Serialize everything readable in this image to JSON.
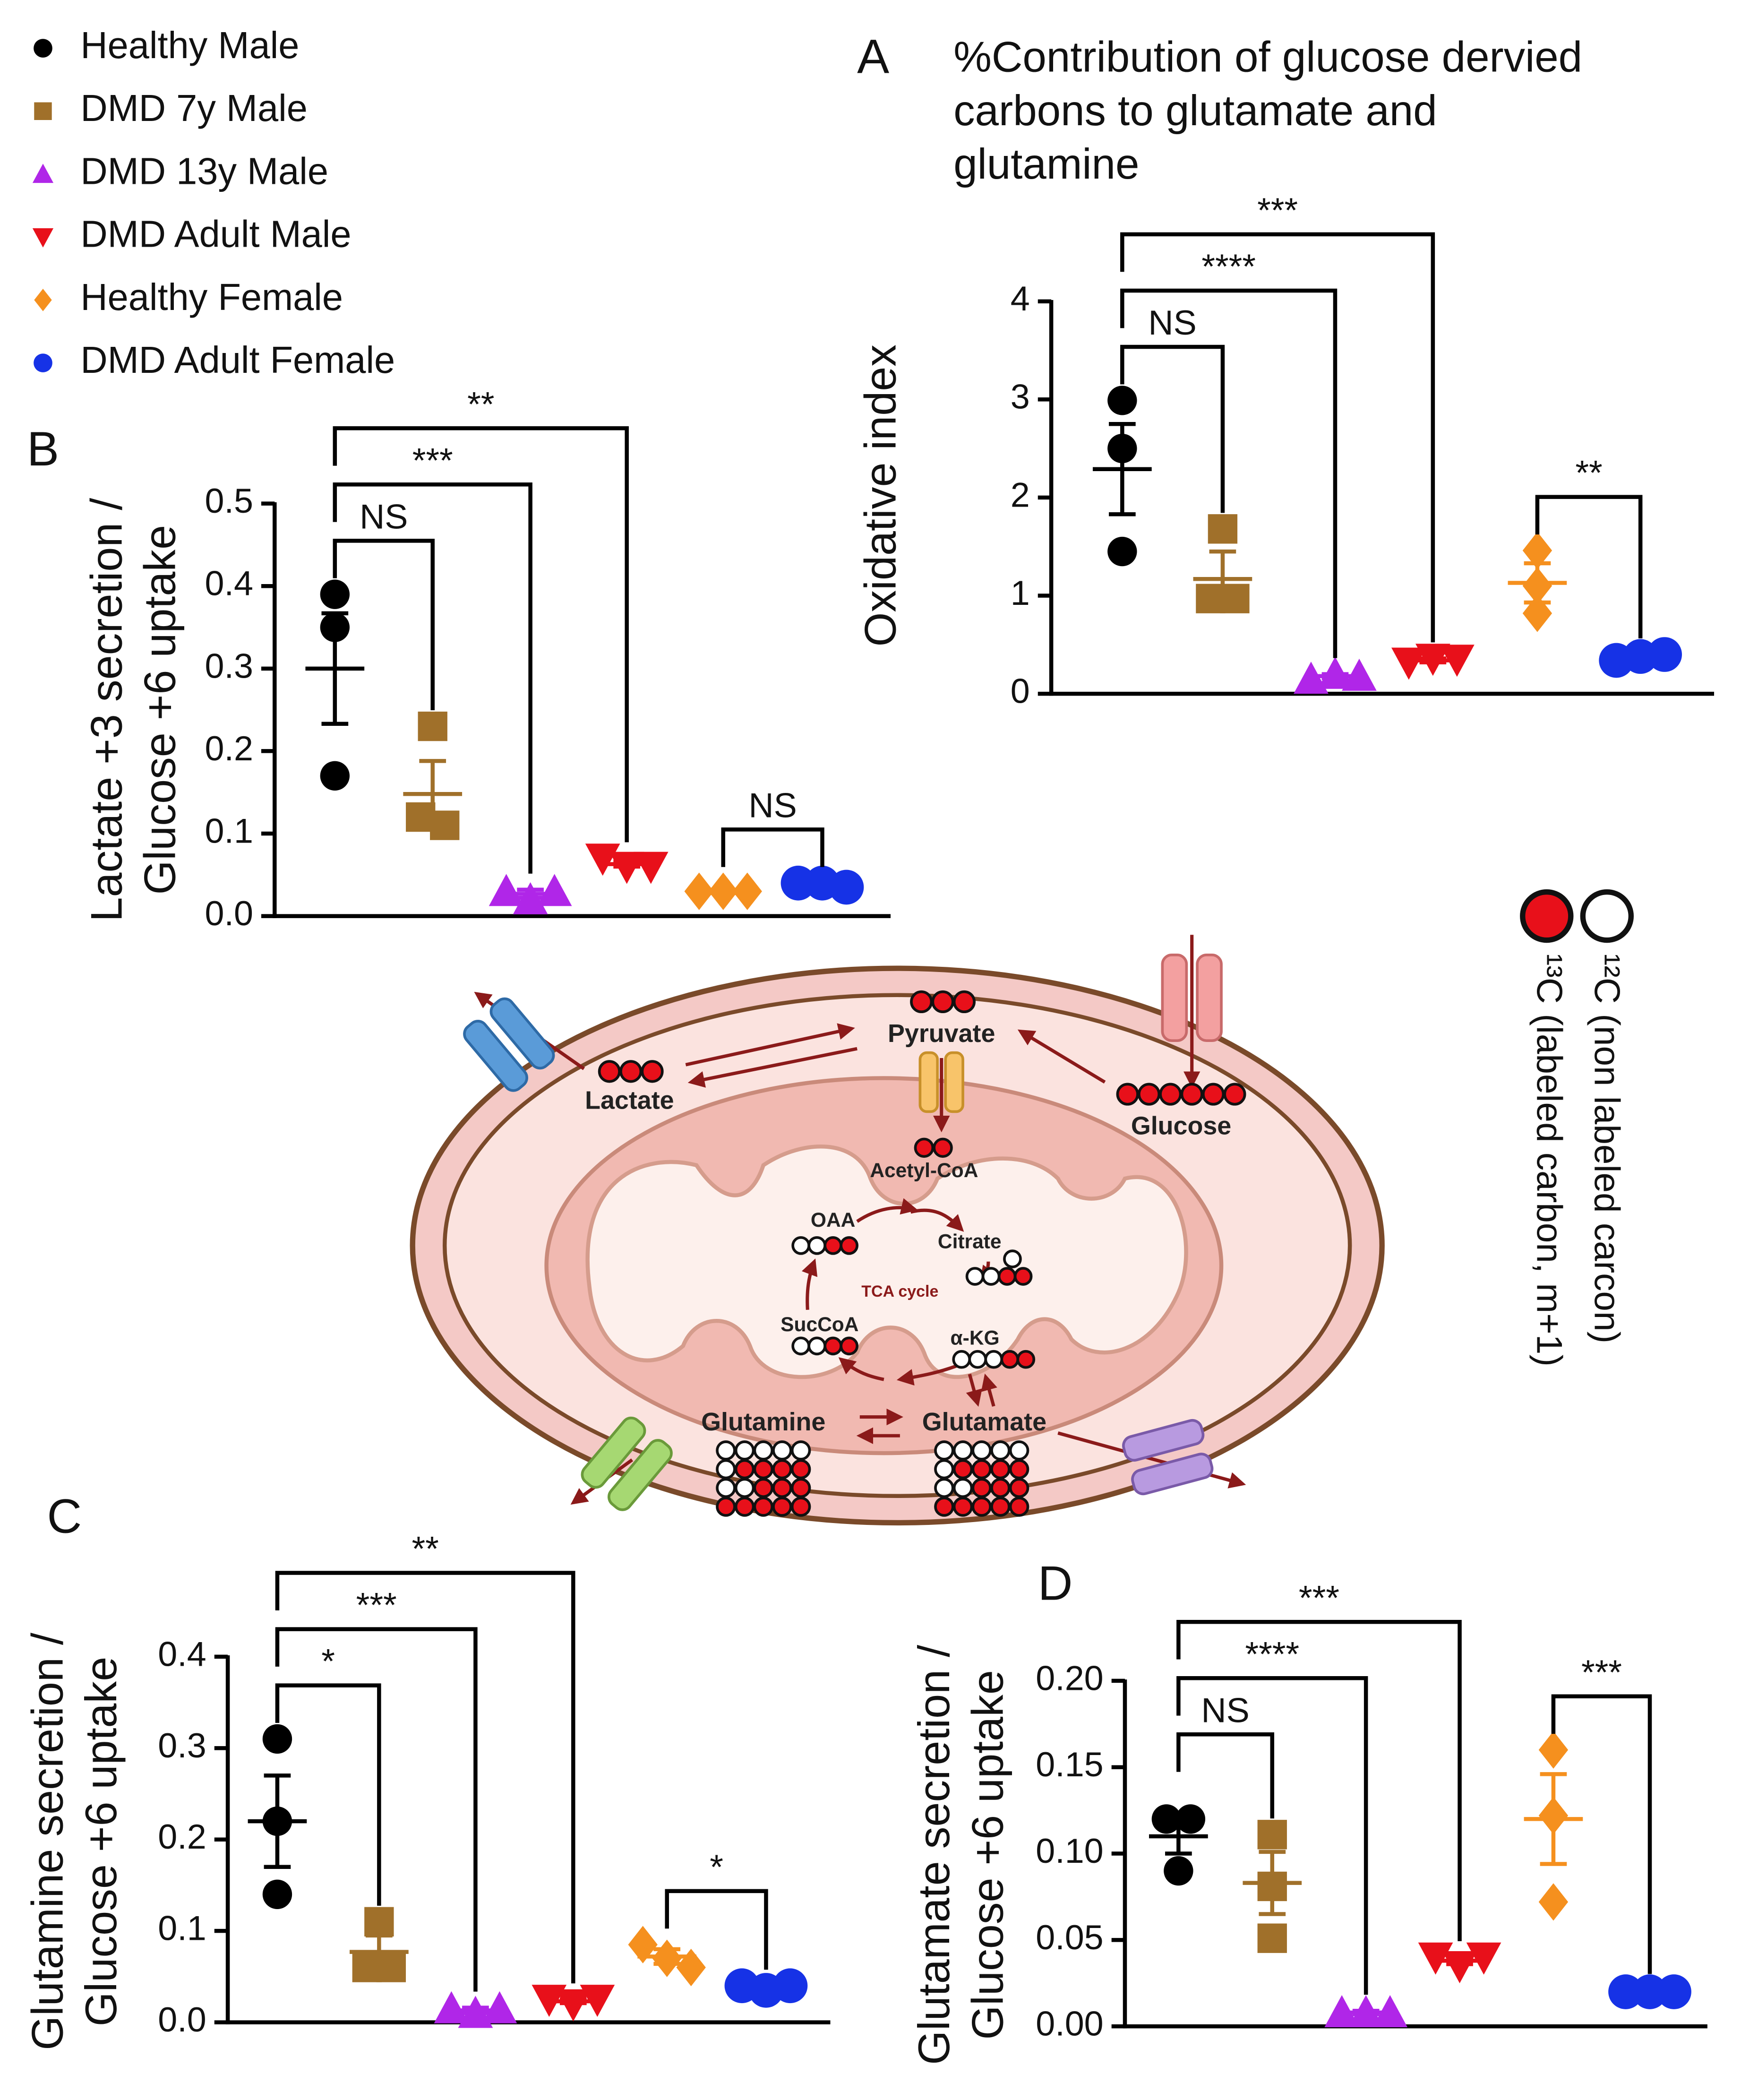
{
  "legend": [
    {
      "name": "Healthy Male",
      "color": "#000000",
      "marker": "circle"
    },
    {
      "name": "DMD 7y Male",
      "color": "#a0702a",
      "marker": "square"
    },
    {
      "name": "DMD 13y Male",
      "color": "#b026e8",
      "marker": "triangle-up"
    },
    {
      "name": "DMD Adult Male",
      "color": "#e8101a",
      "marker": "triangle-down"
    },
    {
      "name": "Healthy Female",
      "color": "#f5901e",
      "marker": "diamond"
    },
    {
      "name": "DMD Adult Female",
      "color": "#1632e6",
      "marker": "big-circle"
    }
  ],
  "chart_data": [
    {
      "type": "dot",
      "panel": "A",
      "title": [
        "%Contribution of glucose dervied",
        "carbons to glutamate and",
        "glutamine"
      ],
      "ylabel": [
        "Oxidative index"
      ],
      "ylim": [
        0,
        4
      ],
      "yticks": [
        0,
        1,
        2,
        3,
        4
      ],
      "groups": [
        {
          "values": [
            2.99,
            2.5,
            1.45
          ],
          "mean": 2.29,
          "sem": 0.46
        },
        {
          "values": [
            1.68,
            0.97,
            0.97
          ],
          "mean": 1.17,
          "sem": 0.28
        },
        {
          "values": [
            0.15,
            0.2,
            0.18
          ],
          "mean": 0.18,
          "sem": 0.02
        },
        {
          "values": [
            0.32,
            0.36,
            0.35
          ],
          "mean": 0.34,
          "sem": 0.02
        },
        {
          "values": [
            1.46,
            1.1,
            0.82
          ],
          "mean": 1.13,
          "sem": 0.2
        },
        {
          "values": [
            0.34,
            0.38,
            0.4
          ],
          "mean": 0.37,
          "sem": 0.02
        }
      ],
      "annotations": [
        {
          "text": "NS",
          "from": 0,
          "to": 1
        },
        {
          "text": "****",
          "from": 0,
          "to": 2
        },
        {
          "text": "***",
          "from": 0,
          "to": 3
        },
        {
          "text": "**",
          "from": 4,
          "to": 5
        }
      ]
    },
    {
      "type": "dot",
      "panel": "B",
      "ylabel": [
        "Lactate +3 secretion /",
        "Glucose +6 uptake"
      ],
      "ylim": [
        0,
        0.5
      ],
      "yticks": [
        {
          "value": 0,
          "label": "0.0"
        },
        0.1,
        0.2,
        0.3,
        0.4,
        0.5
      ],
      "groups": [
        {
          "values": [
            0.39,
            0.35,
            0.17
          ],
          "mean": 0.3,
          "sem": 0.067
        },
        {
          "values": [
            0.23,
            0.12,
            0.11
          ],
          "mean": 0.148,
          "sem": 0.04
        },
        {
          "values": [
            0.03,
            0.02,
            0.03
          ],
          "mean": 0.027,
          "sem": 0.005
        },
        {
          "values": [
            0.07,
            0.06,
            0.06
          ],
          "mean": 0.063,
          "sem": 0.003
        },
        {
          "values": [
            0.03,
            0.03,
            0.03
          ],
          "mean": 0.03,
          "sem": 0.002
        },
        {
          "values": [
            0.04,
            0.04,
            0.035
          ],
          "mean": 0.038,
          "sem": 0.002
        }
      ],
      "annotations": [
        {
          "text": "NS",
          "from": 0,
          "to": 1
        },
        {
          "text": "***",
          "from": 0,
          "to": 2
        },
        {
          "text": "**",
          "from": 0,
          "to": 3
        },
        {
          "text": "NS",
          "from": 4,
          "to": 5
        }
      ]
    },
    {
      "type": "dot",
      "panel": "C",
      "ylabel": [
        "Glutamine secretion /",
        "Glucose +6 uptake"
      ],
      "ylim": [
        0,
        0.4
      ],
      "yticks": [
        {
          "value": 0,
          "label": "0.0"
        },
        0.1,
        0.2,
        0.3,
        0.4
      ],
      "groups": [
        {
          "values": [
            0.31,
            0.22,
            0.14
          ],
          "mean": 0.22,
          "sem": 0.05
        },
        {
          "values": [
            0.11,
            0.06,
            0.06
          ],
          "mean": 0.077,
          "sem": 0.018
        },
        {
          "values": [
            0.015,
            0.01,
            0.015
          ],
          "mean": 0.013,
          "sem": 0.003
        },
        {
          "values": [
            0.025,
            0.02,
            0.025
          ],
          "mean": 0.023,
          "sem": 0.002
        },
        {
          "values": [
            0.085,
            0.07,
            0.06
          ],
          "mean": 0.072,
          "sem": 0.008
        },
        {
          "values": [
            0.04,
            0.035,
            0.04
          ],
          "mean": 0.038,
          "sem": 0.002
        }
      ],
      "annotations": [
        {
          "text": "*",
          "from": 0,
          "to": 1
        },
        {
          "text": "***",
          "from": 0,
          "to": 2
        },
        {
          "text": "**",
          "from": 0,
          "to": 3
        },
        {
          "text": "*",
          "from": 4,
          "to": 5
        }
      ]
    },
    {
      "type": "dot",
      "panel": "D",
      "ylabel": [
        "Glutamate secretion /",
        "Glucose +6 uptake"
      ],
      "ylim": [
        0,
        0.2
      ],
      "yticks": [
        {
          "value": 0,
          "label": "0.00"
        },
        {
          "value": 0.05,
          "label": "0.05"
        },
        {
          "value": 0.1,
          "label": "0.10"
        },
        {
          "value": 0.15,
          "label": "0.15"
        },
        {
          "value": 0.2,
          "label": "0.20"
        }
      ],
      "groups": [
        {
          "values": [
            0.12,
            0.12,
            0.09
          ],
          "mean": 0.11,
          "sem": 0.01
        },
        {
          "values": [
            0.111,
            0.081,
            0.051
          ],
          "mean": 0.083,
          "sem": 0.018
        },
        {
          "values": [
            0.008,
            0.008,
            0.008
          ],
          "mean": 0.008,
          "sem": 0.001
        },
        {
          "values": [
            0.04,
            0.035,
            0.04
          ],
          "mean": 0.038,
          "sem": 0.002
        },
        {
          "values": [
            0.16,
            0.122,
            0.072
          ],
          "mean": 0.12,
          "sem": 0.026
        },
        {
          "values": [
            0.02,
            0.02,
            0.02
          ],
          "mean": 0.02,
          "sem": 0.001
        }
      ],
      "annotations": [
        {
          "text": "NS",
          "from": 0,
          "to": 1
        },
        {
          "text": "****",
          "from": 0,
          "to": 2
        },
        {
          "text": "***",
          "from": 0,
          "to": 3
        },
        {
          "text": "***",
          "from": 4,
          "to": 5
        }
      ]
    }
  ],
  "diagram": {
    "labels": [
      "Pyruvate",
      "Lactate",
      "Glucose",
      "Acetyl-CoA",
      "OAA",
      "Citrate",
      "TCA cycle",
      "SucCoA",
      "α-KG",
      "Glutamine",
      "Glutamate"
    ],
    "key": [
      "¹³C (labeled carbon, m+1)",
      "¹²C (non labeled carcon)"
    ]
  }
}
